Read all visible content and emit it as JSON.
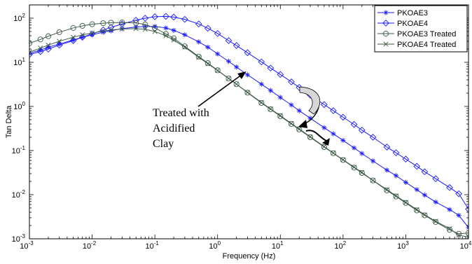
{
  "chart_data": {
    "type": "line",
    "title": "",
    "xlabel": "Frequency (Hz)",
    "ylabel": "Tan Delta",
    "xscale": "log",
    "yscale": "log",
    "xlim": [
      0.001,
      10000
    ],
    "ylim": [
      0.001,
      200
    ],
    "x_ticks": [
      {
        "value": 0.001,
        "label": "10",
        "exp": "-3"
      },
      {
        "value": 0.01,
        "label": "10",
        "exp": "-2"
      },
      {
        "value": 0.1,
        "label": "10",
        "exp": "-1"
      },
      {
        "value": 1,
        "label": "10",
        "exp": "0"
      },
      {
        "value": 10,
        "label": "10",
        "exp": "1"
      },
      {
        "value": 100,
        "label": "10",
        "exp": "2"
      },
      {
        "value": 1000,
        "label": "10",
        "exp": "3"
      },
      {
        "value": 10000,
        "label": "10",
        "exp": "4"
      }
    ],
    "y_ticks": [
      {
        "value": 0.001,
        "label": "10",
        "exp": "-3"
      },
      {
        "value": 0.01,
        "label": "10",
        "exp": "-2"
      },
      {
        "value": 0.1,
        "label": "10",
        "exp": "-1"
      },
      {
        "value": 1,
        "label": "10",
        "exp": "0"
      },
      {
        "value": 10,
        "label": "10",
        "exp": "1"
      },
      {
        "value": 100,
        "label": "10",
        "exp": "2"
      }
    ],
    "grid": false,
    "legend_position": "top-right",
    "series": [
      {
        "name": "PKOAE3",
        "marker": "asterisk",
        "color": "#1a1aff",
        "x": [
          0.001,
          0.0015,
          0.002,
          0.003,
          0.005,
          0.007,
          0.01,
          0.015,
          0.02,
          0.03,
          0.05,
          0.07,
          0.1,
          0.15,
          0.2,
          0.3,
          0.5,
          0.7,
          1,
          1.5,
          2,
          3,
          5,
          7,
          10,
          15,
          20,
          30,
          50,
          70,
          100,
          150,
          200,
          300,
          500,
          700,
          1000,
          1500,
          2000,
          3000,
          5000,
          7000,
          10000
        ],
        "y": [
          16,
          19,
          22,
          26,
          32,
          37,
          42,
          48,
          52,
          58,
          63,
          65,
          65,
          60,
          53,
          42,
          29,
          22,
          15.5,
          10.5,
          7.8,
          5.2,
          3.2,
          2.3,
          1.6,
          1.08,
          0.8,
          0.54,
          0.33,
          0.24,
          0.17,
          0.115,
          0.086,
          0.058,
          0.036,
          0.027,
          0.019,
          0.013,
          0.0098,
          0.0068,
          0.0046,
          0.0034,
          0.0018
        ]
      },
      {
        "name": "PKOAE4",
        "marker": "diamond",
        "color": "#1a1aff",
        "x": [
          0.001,
          0.0015,
          0.002,
          0.003,
          0.005,
          0.007,
          0.01,
          0.015,
          0.02,
          0.03,
          0.05,
          0.07,
          0.1,
          0.15,
          0.2,
          0.3,
          0.5,
          0.7,
          1,
          1.5,
          2,
          3,
          5,
          7,
          10,
          15,
          20,
          30,
          50,
          70,
          100,
          150,
          200,
          300,
          500,
          700,
          1000,
          1500,
          2000,
          3000,
          5000,
          7000,
          10000
        ],
        "y": [
          15,
          17.5,
          20,
          24.5,
          31,
          37,
          44,
          54,
          62,
          74,
          90,
          100,
          108,
          110,
          106,
          94,
          74,
          59,
          45,
          31,
          24,
          16.5,
          10.2,
          7.4,
          5.3,
          3.6,
          2.7,
          1.8,
          1.1,
          0.8,
          0.57,
          0.39,
          0.29,
          0.2,
          0.12,
          0.089,
          0.064,
          0.044,
          0.033,
          0.023,
          0.0145,
          0.0105,
          0.0047
        ]
      },
      {
        "name": "PKOAE3 Treated",
        "marker": "circle",
        "color": "#3c5a44",
        "x": [
          0.001,
          0.0015,
          0.002,
          0.003,
          0.005,
          0.007,
          0.01,
          0.015,
          0.02,
          0.03,
          0.05,
          0.07,
          0.1,
          0.15,
          0.2,
          0.3,
          0.5,
          0.7,
          1,
          1.5,
          2,
          3,
          5,
          7,
          10,
          15,
          20,
          30,
          50,
          70,
          100,
          150,
          200,
          300,
          500,
          700,
          1000,
          1500,
          2000,
          3000,
          5000,
          7000,
          10000
        ],
        "y": [
          27,
          33,
          39,
          48,
          60,
          67,
          73,
          77,
          79,
          80,
          78,
          72,
          60,
          44,
          35,
          23,
          13.5,
          9.6,
          6.6,
          4.3,
          3.2,
          2.05,
          1.2,
          0.86,
          0.6,
          0.4,
          0.3,
          0.2,
          0.12,
          0.087,
          0.061,
          0.041,
          0.031,
          0.021,
          0.0125,
          0.0091,
          0.0065,
          0.0044,
          0.0034,
          0.0024,
          0.0016,
          0.0013,
          0.00135
        ]
      },
      {
        "name": "PKOAE4 Treated",
        "marker": "x",
        "color": "#3c5a44",
        "x": [
          0.001,
          0.0015,
          0.002,
          0.003,
          0.005,
          0.007,
          0.01,
          0.015,
          0.02,
          0.03,
          0.05,
          0.07,
          0.1,
          0.15,
          0.2,
          0.3,
          0.5,
          0.7,
          1,
          1.5,
          2,
          3,
          5,
          7,
          10,
          15,
          20,
          30,
          50,
          70,
          100,
          150,
          200,
          300,
          500,
          700,
          1000,
          1500,
          2000,
          3000,
          5000,
          7000,
          10000
        ],
        "y": [
          17,
          21,
          24.5,
          30,
          37,
          42,
          46,
          51,
          54,
          57,
          58,
          56,
          50,
          40,
          32,
          22,
          13,
          9.3,
          6.5,
          4.3,
          3.2,
          2.08,
          1.23,
          0.88,
          0.62,
          0.41,
          0.31,
          0.205,
          0.123,
          0.088,
          0.062,
          0.042,
          0.032,
          0.021,
          0.013,
          0.0094,
          0.0067,
          0.0046,
          0.0035,
          0.0025,
          0.0017,
          0.0012,
          0.0011
        ]
      }
    ],
    "annotations": [
      {
        "text_lines": [
          "Treated with",
          "Acidified",
          "Clay"
        ],
        "arrow_to": {
          "x": 2.0,
          "y": 5.0
        }
      }
    ]
  }
}
